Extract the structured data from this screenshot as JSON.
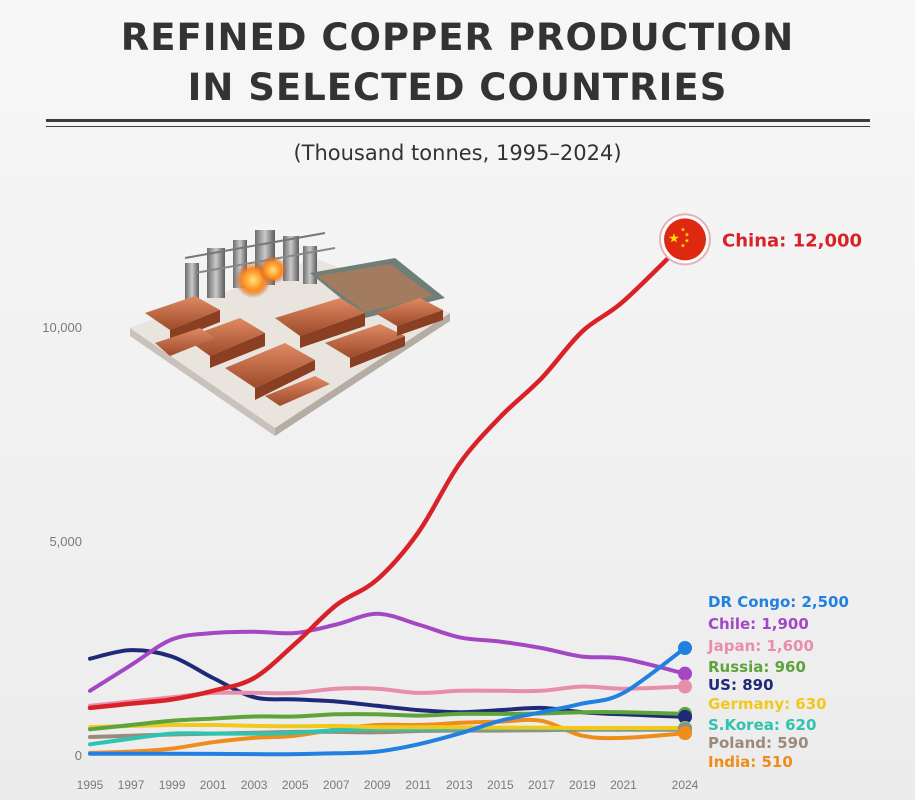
{
  "header": {
    "title_line1": "REFINED COPPER PRODUCTION",
    "title_line2": "IN SELECTED COUNTRIES",
    "subtitle": "(Thousand tonnes, 1995–2024)"
  },
  "illustration": {
    "icon": "copper-refinery-illustration"
  },
  "chart_data": {
    "type": "line",
    "title": "REFINED COPPER PRODUCTION IN SELECTED COUNTRIES",
    "subtitle": "(Thousand tonnes, 1995–2024)",
    "x": [
      1995,
      1997,
      1999,
      2001,
      2003,
      2005,
      2007,
      2009,
      2011,
      2013,
      2015,
      2017,
      2019,
      2021,
      2024
    ],
    "x_tick_labels": [
      "1995",
      "1997",
      "1999",
      "2001",
      "2003",
      "2005",
      "2007",
      "2009",
      "2011",
      "2013",
      "2015",
      "2017",
      "2019",
      "2021",
      "2024"
    ],
    "ylim": [
      0,
      12500
    ],
    "y_ticks": [
      0,
      5000,
      10000
    ],
    "y_tick_labels": [
      "0",
      "5,000",
      "10,000"
    ],
    "grid": false,
    "legend": "end-of-line labels",
    "series": [
      {
        "name": "China",
        "label": "China: 12,000",
        "color": "#d92228",
        "values": [
          1100,
          1200,
          1300,
          1500,
          1800,
          2600,
          3500,
          4100,
          5200,
          6800,
          7900,
          8800,
          9900,
          10600,
          12000
        ]
      },
      {
        "name": "DR Congo",
        "label": "DR Congo: 2,500",
        "color": "#2281e0",
        "values": [
          30,
          30,
          30,
          25,
          20,
          20,
          40,
          80,
          250,
          500,
          800,
          1000,
          1200,
          1450,
          2500
        ]
      },
      {
        "name": "Chile",
        "label": "Chile: 1,900",
        "color": "#a347c4",
        "values": [
          1500,
          2100,
          2700,
          2850,
          2880,
          2850,
          3050,
          3300,
          3050,
          2750,
          2650,
          2500,
          2300,
          2250,
          1900
        ]
      },
      {
        "name": "Japan",
        "label": "Japan: 1,600",
        "color": "#e98eaa",
        "values": [
          1150,
          1250,
          1350,
          1450,
          1450,
          1450,
          1550,
          1550,
          1450,
          1500,
          1500,
          1500,
          1600,
          1550,
          1600
        ]
      },
      {
        "name": "Russia",
        "label": "Russia: 960",
        "color": "#5fa33b",
        "values": [
          600,
          700,
          800,
          850,
          900,
          900,
          950,
          950,
          920,
          960,
          960,
          970,
          1000,
          1000,
          960
        ]
      },
      {
        "name": "US",
        "label": "US: 890",
        "color": "#1e2a78",
        "values": [
          2250,
          2450,
          2300,
          1800,
          1350,
          1300,
          1250,
          1150,
          1050,
          1000,
          1050,
          1100,
          1000,
          950,
          890
        ]
      },
      {
        "name": "Germany",
        "label": "Germany: 630",
        "color": "#f2c81c",
        "values": [
          650,
          680,
          700,
          700,
          680,
          670,
          680,
          650,
          650,
          650,
          640,
          640,
          630,
          630,
          630
        ]
      },
      {
        "name": "S.Korea",
        "label": "S.Korea: 620",
        "color": "#2ec4b0",
        "values": [
          250,
          380,
          500,
          500,
          500,
          520,
          580,
          600,
          600,
          620,
          620,
          620,
          620,
          620,
          620
        ]
      },
      {
        "name": "Poland",
        "label": "Poland: 590",
        "color": "#9c8b7b",
        "values": [
          420,
          450,
          480,
          500,
          520,
          540,
          540,
          530,
          560,
          570,
          570,
          580,
          590,
          590,
          590
        ]
      },
      {
        "name": "India",
        "label": "India: 510",
        "color": "#f08c1a",
        "values": [
          50,
          80,
          150,
          300,
          400,
          450,
          600,
          700,
          700,
          750,
          780,
          800,
          450,
          400,
          510
        ]
      }
    ]
  }
}
